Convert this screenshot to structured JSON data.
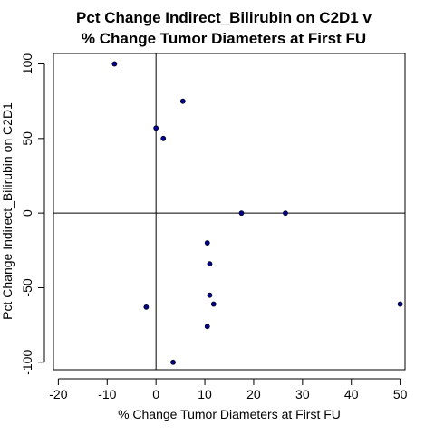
{
  "chart_data": {
    "type": "scatter",
    "title_line1": "Pct Change Indirect_Bilirubin on C2D1 v",
    "title_line2": "% Change Tumor Diameters at First FU",
    "xlabel": "% Change Tumor Diameters at First FU",
    "ylabel": "Pct Change Indirect_Bilirubin on C2D1",
    "xlim": [
      -21,
      51
    ],
    "ylim": [
      -105,
      107
    ],
    "x_ticks": [
      -20,
      -10,
      0,
      10,
      20,
      30,
      40,
      50
    ],
    "y_ticks": [
      -100,
      -50,
      0,
      50,
      100
    ],
    "x_tick_labels": [
      "-20",
      "-10",
      "0",
      "10",
      "20",
      "30",
      "40",
      "50"
    ],
    "y_tick_labels": [
      "-100",
      "-50",
      "0",
      "50",
      "100"
    ],
    "reference_lines": {
      "x": 0,
      "y": 0
    },
    "point_color": "#00008b",
    "points": [
      {
        "x": -8.5,
        "y": 100
      },
      {
        "x": 5.5,
        "y": 75
      },
      {
        "x": 0.0,
        "y": 57
      },
      {
        "x": 1.5,
        "y": 50
      },
      {
        "x": 17.5,
        "y": 0
      },
      {
        "x": 26.5,
        "y": 0
      },
      {
        "x": 10.5,
        "y": -20
      },
      {
        "x": 11.0,
        "y": -34
      },
      {
        "x": 11.0,
        "y": -55
      },
      {
        "x": 11.8,
        "y": -61
      },
      {
        "x": 10.5,
        "y": -76
      },
      {
        "x": -2.0,
        "y": -63
      },
      {
        "x": 50.0,
        "y": -61
      },
      {
        "x": 3.5,
        "y": -100
      }
    ]
  }
}
